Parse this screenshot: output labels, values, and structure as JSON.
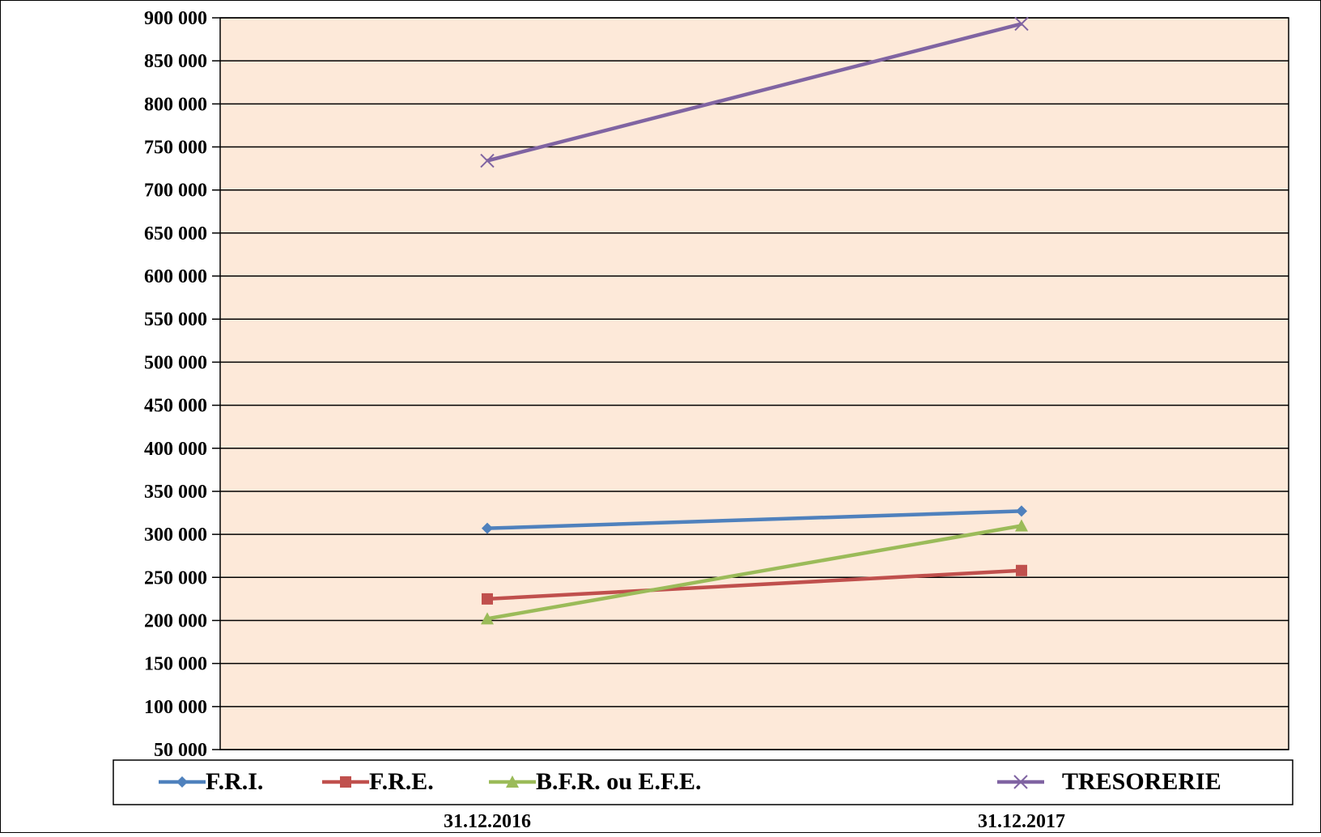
{
  "chart_data": {
    "type": "line",
    "title": "",
    "xlabel": "",
    "ylabel": "",
    "categories": [
      "31.12.2016",
      "31.12.2017"
    ],
    "ylim": [
      50000,
      900000
    ],
    "ytick_step": 50000,
    "y_tick_labels": [
      "900 000",
      "850 000",
      "800 000",
      "750 000",
      "700 000",
      "650 000",
      "600 000",
      "550 000",
      "500 000",
      "450 000",
      "400 000",
      "350 000",
      "300 000",
      "250 000",
      "200 000",
      "150 000",
      "100 000",
      "50 000"
    ],
    "grid": true,
    "legend_position": "bottom",
    "plot_background": "#fde9d9",
    "series": [
      {
        "name": "F.R.I.",
        "values": [
          307000,
          327000
        ],
        "color": "#4f81bd",
        "marker": "diamond"
      },
      {
        "name": "F.R.E.",
        "values": [
          225000,
          258000
        ],
        "color": "#c0504d",
        "marker": "square"
      },
      {
        "name": "B.F.R. ou E.F.E.",
        "values": [
          202000,
          310000
        ],
        "color": "#9bbb59",
        "marker": "triangle"
      },
      {
        "name": "TRESORERIE",
        "values": [
          734000,
          893000
        ],
        "color": "#8064a2",
        "marker": "x"
      }
    ]
  }
}
